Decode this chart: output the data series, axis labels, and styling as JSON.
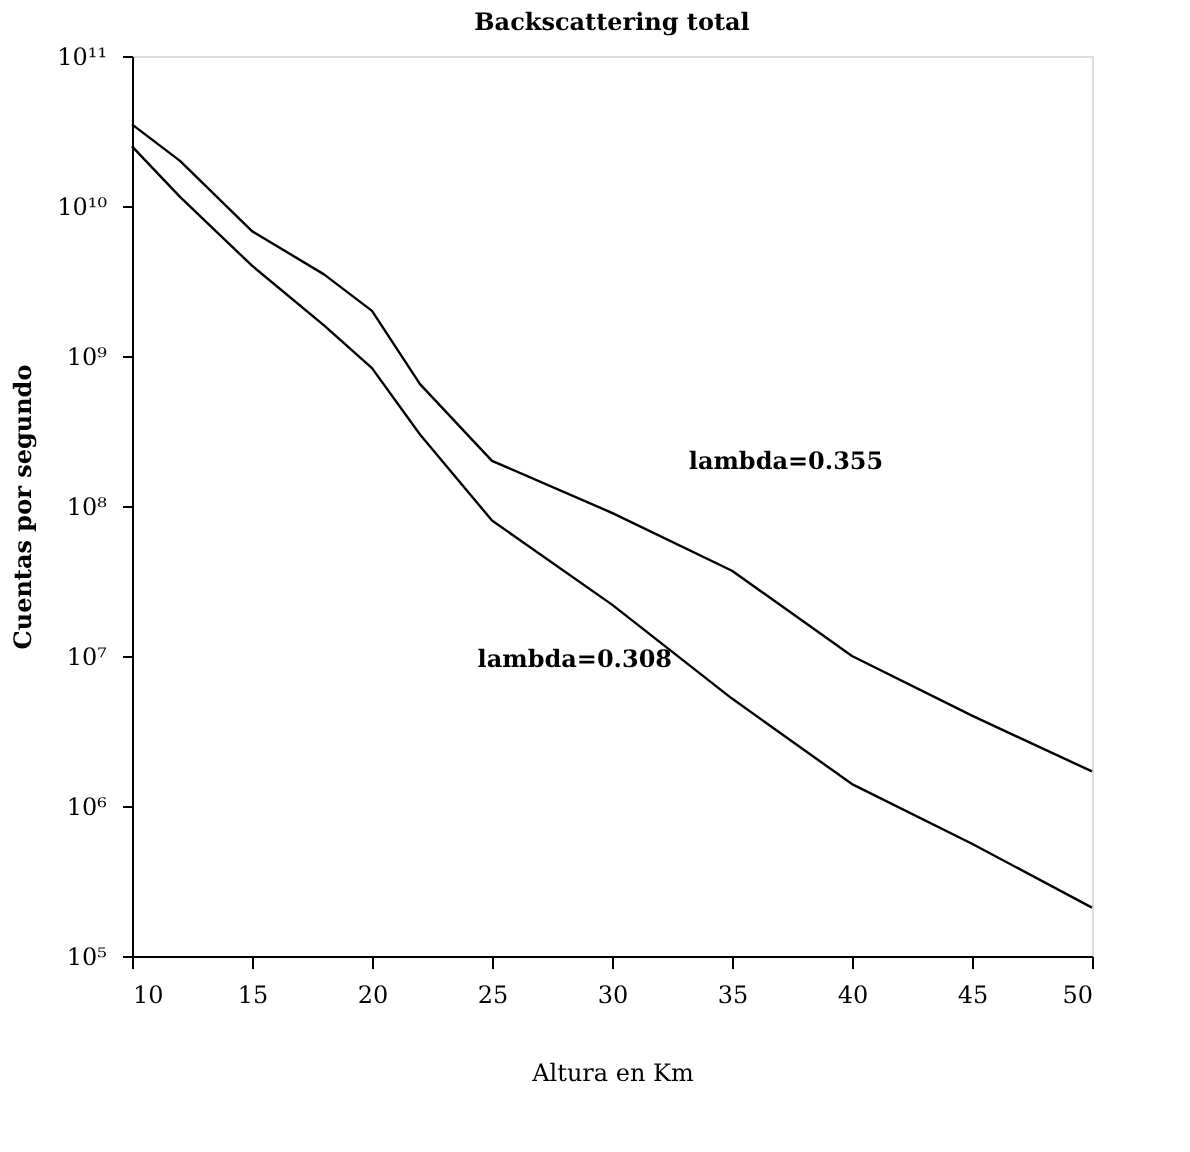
{
  "chart_data": {
    "type": "line",
    "title": "Backscattering total",
    "xlabel": "Altura en Km",
    "ylabel": "Cuentas por segundo",
    "log": "y",
    "grid": false,
    "legend": false,
    "marker": "none",
    "line_style": "solid",
    "x": [
      10,
      12,
      15,
      18,
      20,
      22,
      25,
      30,
      35,
      40,
      45,
      50
    ],
    "xlim": [
      10,
      50
    ],
    "xticks": [
      10,
      15,
      20,
      25,
      30,
      35,
      40,
      45,
      50
    ],
    "ylim": [
      100000,
      100000000000
    ],
    "yticks": [
      {
        "value": 100000,
        "label": "10⁵"
      },
      {
        "value": 1000000,
        "label": "10⁶"
      },
      {
        "value": 10000000,
        "label": "10⁷"
      },
      {
        "value": 100000000,
        "label": "10⁸"
      },
      {
        "value": 1000000000,
        "label": "10⁹"
      },
      {
        "value": 10000000000,
        "label": "10¹⁰"
      },
      {
        "value": 100000000000,
        "label": "10¹¹"
      }
    ],
    "series": [
      {
        "color": "#000000",
        "values": [
          35000000000,
          20000000000,
          6800000000,
          3500000000,
          2000000000,
          650000000,
          200000000,
          90000000,
          37000000,
          10000000,
          4000000,
          1700000
        ]
      },
      {
        "color": "#000000",
        "values": [
          25000000000,
          11500000000,
          4000000000,
          1600000000,
          830000000,
          300000000,
          80000000,
          22000000,
          5200000,
          1400000,
          560000,
          210000
        ]
      }
    ],
    "annotations": [
      "lambda=0.355",
      "lambda=0.308"
    ]
  }
}
